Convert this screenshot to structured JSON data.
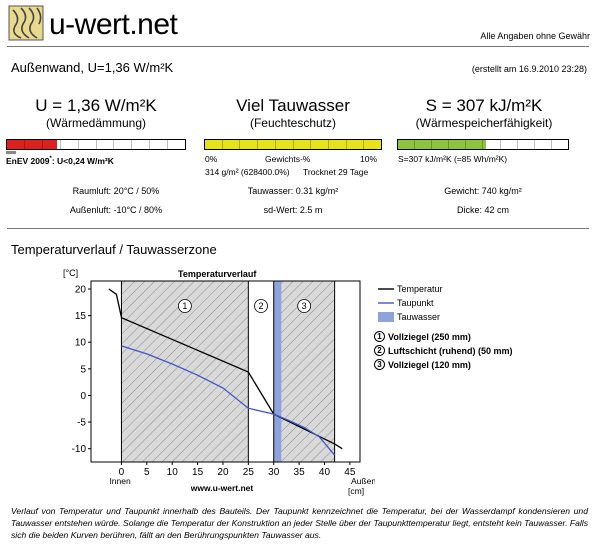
{
  "header": {
    "logo_text": "u-wert.net",
    "disclaimer": "Alle Angaben ohne Gewähr"
  },
  "component": {
    "title": "Außenwand, U=1,36 W/m²K",
    "created": "(erstellt am 16.9.2010 23:28)"
  },
  "metrics": {
    "u": {
      "value": "U = 1,36 W/m²K",
      "label": "(Wärmedämmung)",
      "bar_fill_fraction": 0.28,
      "bar_color": "#dd1f1f",
      "enev_label": "EnEV 2009",
      "enev_sup": "*",
      "enev_value": ": U<0,24 W/m²K",
      "raumluft": "Raumluft: 20°C / 50%",
      "aussenluft": "Außenluft: -10°C / 80%"
    },
    "moisture": {
      "value": "Viel Tauwasser",
      "label": "(Feuchteschutz)",
      "bar_fill_fraction": 1.0,
      "bar_color": "#e8e21a",
      "scale_min": "0%",
      "scale_mid": "Gewichts-%",
      "scale_max": "10%",
      "detail_left": "314 g/m² (628400.0%)",
      "detail_right": "Trocknet 29 Tage",
      "tauwasser": "Tauwasser: 0.31 kg/m²",
      "sd_wert": "sd-Wert: 2.5 m"
    },
    "storage": {
      "value": "S = 307 kJ/m²K",
      "label": "(Wärmespeicherfähigkeit)",
      "bar_fill_fraction": 0.52,
      "bar_color": "#8cc43c",
      "detail": "S=307 kJ/m²K (=85 Wh/m²K)",
      "gewicht": "Gewicht: 740 kg/m²",
      "dicke": "Dicke: 42 cm"
    }
  },
  "section2": {
    "title": "Temperaturverlauf / Tauwasserzone"
  },
  "chart_data": {
    "type": "line",
    "title": "Temperaturverlauf",
    "ylabel": "[°C]",
    "xlabel": "[cm]",
    "x_inside_label": "Innen",
    "x_outside_label": "Außen",
    "watermark": "www.u-wert.net",
    "xlim": [
      -6,
      47
    ],
    "ylim": [
      -12.5,
      21.5
    ],
    "xticks": [
      0,
      5,
      10,
      15,
      20,
      25,
      30,
      35,
      40,
      45
    ],
    "yticks": [
      20,
      15,
      10,
      5,
      0,
      -5,
      -10
    ],
    "layers": [
      {
        "num": "1",
        "x0": 0,
        "x1": 25,
        "hatched": true
      },
      {
        "num": "2",
        "x0": 25,
        "x1": 30,
        "hatched": false
      },
      {
        "num": "3",
        "x0": 30,
        "x1": 42,
        "hatched": true
      }
    ],
    "condensation_zone": [
      30,
      31.5
    ],
    "series": [
      {
        "name": "Temperatur",
        "color": "#000000",
        "points": [
          [
            -2.5,
            20
          ],
          [
            -1,
            19
          ],
          [
            0,
            14.6
          ],
          [
            25,
            4.4
          ],
          [
            30,
            -3.5
          ],
          [
            42,
            -9.1
          ],
          [
            43.5,
            -10
          ]
        ]
      },
      {
        "name": "Taupunkt",
        "color": "#3f57c9",
        "points": [
          [
            0,
            9.3
          ],
          [
            5,
            7.8
          ],
          [
            10,
            5.9
          ],
          [
            15,
            3.8
          ],
          [
            20,
            1.4
          ],
          [
            25,
            -2.4
          ],
          [
            30,
            -3.5
          ],
          [
            33,
            -4.7
          ],
          [
            36,
            -6
          ],
          [
            39,
            -7.8
          ],
          [
            42,
            -11.2
          ]
        ]
      }
    ],
    "legend": [
      {
        "label": "Temperatur",
        "kind": "line",
        "color": "#000000"
      },
      {
        "label": "Taupunkt",
        "kind": "line",
        "color": "#3f57c9"
      },
      {
        "label": "Tauwasser",
        "kind": "box",
        "color": "#8ea3dc"
      }
    ],
    "layer_legend": [
      {
        "num": "1",
        "label": "Vollziegel (250 mm)"
      },
      {
        "num": "2",
        "label": "Luftschicht (ruhend) (50 mm)"
      },
      {
        "num": "3",
        "label": "Vollziegel (120 mm)"
      }
    ]
  },
  "footnote": "Verlauf von Temperatur und Taupunkt innerhalb des Bauteils. Der Taupunkt kennzeichnet die Temperatur, bei der Wasserdampf kondensieren und Tauwasser entstehen würde. Solange die Temperatur der Konstruktion an jeder Stelle über der Taupunkttemperatur liegt, entsteht kein Tauwasser. Falls sich die beiden Kurven berühren, fällt an den Berührungspunkten Tauwasser aus."
}
